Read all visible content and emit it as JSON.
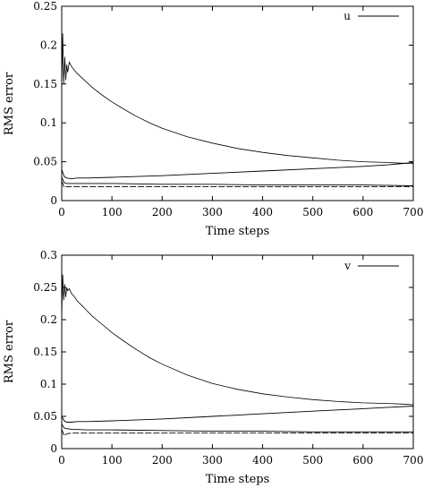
{
  "chart_data": [
    {
      "type": "line",
      "xlabel": "Time steps",
      "ylabel": "RMS error",
      "xlim": [
        0,
        700
      ],
      "ylim": [
        0,
        0.25
      ],
      "xticks": [
        "0",
        "100",
        "200",
        "300",
        "400",
        "500",
        "600",
        "700"
      ],
      "yticks": [
        "0",
        "0.05",
        "0.1",
        "0.15",
        "0.2",
        "0.25"
      ],
      "grid": false,
      "legend": "top-right",
      "series": [
        {
          "name": "u",
          "x": [
            0,
            2,
            4,
            6,
            8,
            10,
            12,
            15,
            20,
            25,
            30,
            40,
            50,
            60,
            80,
            100,
            125,
            150,
            175,
            200,
            250,
            300,
            350,
            400,
            450,
            500,
            550,
            600,
            650,
            680,
            700
          ],
          "y": [
            0.145,
            0.215,
            0.15,
            0.185,
            0.155,
            0.175,
            0.165,
            0.178,
            0.172,
            0.168,
            0.164,
            0.158,
            0.152,
            0.146,
            0.136,
            0.127,
            0.117,
            0.108,
            0.1,
            0.093,
            0.082,
            0.074,
            0.067,
            0.062,
            0.058,
            0.055,
            0.052,
            0.05,
            0.049,
            0.048,
            0.048
          ]
        },
        {
          "x": [
            0,
            5,
            10,
            20,
            30,
            50,
            100,
            200,
            300,
            400,
            500,
            600,
            650,
            700
          ],
          "y": [
            0.04,
            0.031,
            0.029,
            0.028,
            0.029,
            0.029,
            0.03,
            0.032,
            0.035,
            0.038,
            0.041,
            0.044,
            0.046,
            0.049
          ]
        },
        {
          "x": [
            0,
            5,
            10,
            20,
            50,
            100,
            200,
            300,
            400,
            500,
            600,
            700
          ],
          "y": [
            0.03,
            0.023,
            0.022,
            0.022,
            0.022,
            0.022,
            0.021,
            0.021,
            0.02,
            0.02,
            0.02,
            0.019
          ]
        },
        {
          "x": [
            0,
            5,
            10,
            20,
            50,
            100,
            200,
            300,
            400,
            500,
            600,
            700
          ],
          "y": [
            0.025,
            0.017,
            0.018,
            0.018,
            0.018,
            0.018,
            0.018,
            0.018,
            0.018,
            0.018,
            0.018,
            0.018
          ]
        }
      ]
    },
    {
      "type": "line",
      "xlabel": "Time steps",
      "ylabel": "RMS error",
      "xlim": [
        0,
        700
      ],
      "ylim": [
        0,
        0.3
      ],
      "xticks": [
        "0",
        "100",
        "200",
        "300",
        "400",
        "500",
        "600",
        "700"
      ],
      "yticks": [
        "0",
        "0.05",
        "0.1",
        "0.15",
        "0.2",
        "0.25",
        "0.3"
      ],
      "grid": false,
      "legend": "top-right",
      "series": [
        {
          "name": "v",
          "x": [
            0,
            2,
            4,
            6,
            8,
            10,
            12,
            15,
            20,
            25,
            30,
            40,
            50,
            60,
            80,
            100,
            125,
            150,
            175,
            200,
            250,
            300,
            350,
            400,
            450,
            500,
            550,
            600,
            650,
            680,
            700
          ],
          "y": [
            0.205,
            0.27,
            0.23,
            0.255,
            0.235,
            0.25,
            0.245,
            0.248,
            0.24,
            0.236,
            0.23,
            0.222,
            0.214,
            0.206,
            0.193,
            0.18,
            0.166,
            0.153,
            0.141,
            0.131,
            0.114,
            0.101,
            0.092,
            0.085,
            0.08,
            0.076,
            0.073,
            0.071,
            0.07,
            0.069,
            0.068
          ]
        },
        {
          "x": [
            0,
            5,
            10,
            20,
            30,
            50,
            100,
            200,
            300,
            400,
            500,
            600,
            650,
            700
          ],
          "y": [
            0.05,
            0.043,
            0.041,
            0.041,
            0.042,
            0.042,
            0.043,
            0.046,
            0.05,
            0.054,
            0.058,
            0.062,
            0.064,
            0.066
          ]
        },
        {
          "x": [
            0,
            5,
            10,
            20,
            50,
            100,
            200,
            300,
            400,
            500,
            600,
            700
          ],
          "y": [
            0.038,
            0.032,
            0.031,
            0.03,
            0.029,
            0.029,
            0.028,
            0.027,
            0.027,
            0.026,
            0.026,
            0.026
          ]
        },
        {
          "x": [
            0,
            5,
            10,
            20,
            50,
            100,
            200,
            300,
            400,
            500,
            600,
            700
          ],
          "y": [
            0.03,
            0.02,
            0.023,
            0.024,
            0.024,
            0.024,
            0.024,
            0.024,
            0.024,
            0.024,
            0.024,
            0.024
          ]
        }
      ]
    }
  ]
}
